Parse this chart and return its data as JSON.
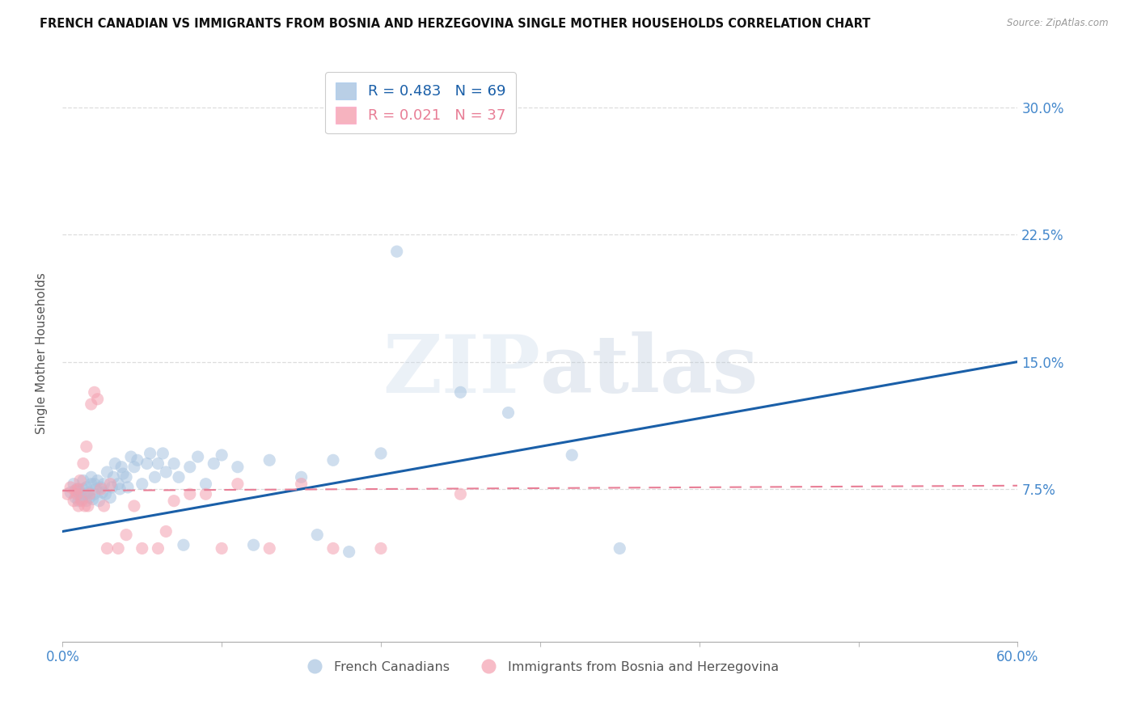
{
  "title": "FRENCH CANADIAN VS IMMIGRANTS FROM BOSNIA AND HERZEGOVINA SINGLE MOTHER HOUSEHOLDS CORRELATION CHART",
  "source": "Source: ZipAtlas.com",
  "ylabel": "Single Mother Households",
  "xlim": [
    0.0,
    0.6
  ],
  "ylim": [
    -0.015,
    0.325
  ],
  "yticks": [
    0.075,
    0.15,
    0.225,
    0.3
  ],
  "ytick_labels": [
    "7.5%",
    "15.0%",
    "22.5%",
    "30.0%"
  ],
  "xticks": [
    0.0,
    0.1,
    0.2,
    0.3,
    0.4,
    0.5,
    0.6
  ],
  "xtick_labels_shown": [
    "0.0%",
    "",
    "",
    "",
    "",
    "",
    "60.0%"
  ],
  "blue_scatter_x": [
    0.005,
    0.007,
    0.008,
    0.009,
    0.01,
    0.01,
    0.011,
    0.012,
    0.013,
    0.013,
    0.014,
    0.015,
    0.015,
    0.016,
    0.017,
    0.018,
    0.018,
    0.019,
    0.02,
    0.02,
    0.021,
    0.022,
    0.023,
    0.024,
    0.025,
    0.026,
    0.027,
    0.028,
    0.03,
    0.031,
    0.032,
    0.033,
    0.035,
    0.036,
    0.037,
    0.038,
    0.04,
    0.041,
    0.043,
    0.045,
    0.047,
    0.05,
    0.053,
    0.055,
    0.058,
    0.06,
    0.063,
    0.065,
    0.07,
    0.073,
    0.076,
    0.08,
    0.085,
    0.09,
    0.095,
    0.1,
    0.11,
    0.12,
    0.13,
    0.15,
    0.16,
    0.17,
    0.18,
    0.2,
    0.21,
    0.25,
    0.28,
    0.32,
    0.35
  ],
  "blue_scatter_y": [
    0.073,
    0.078,
    0.07,
    0.075,
    0.068,
    0.074,
    0.072,
    0.069,
    0.075,
    0.08,
    0.072,
    0.068,
    0.076,
    0.073,
    0.07,
    0.078,
    0.082,
    0.069,
    0.072,
    0.078,
    0.075,
    0.08,
    0.068,
    0.076,
    0.073,
    0.078,
    0.072,
    0.085,
    0.07,
    0.076,
    0.082,
    0.09,
    0.078,
    0.075,
    0.088,
    0.084,
    0.082,
    0.076,
    0.094,
    0.088,
    0.092,
    0.078,
    0.09,
    0.096,
    0.082,
    0.09,
    0.096,
    0.085,
    0.09,
    0.082,
    0.042,
    0.088,
    0.094,
    0.078,
    0.09,
    0.095,
    0.088,
    0.042,
    0.092,
    0.082,
    0.048,
    0.092,
    0.038,
    0.096,
    0.215,
    0.132,
    0.12,
    0.095,
    0.04
  ],
  "pink_scatter_x": [
    0.003,
    0.005,
    0.007,
    0.008,
    0.009,
    0.01,
    0.01,
    0.011,
    0.012,
    0.013,
    0.014,
    0.015,
    0.016,
    0.017,
    0.018,
    0.02,
    0.022,
    0.024,
    0.026,
    0.028,
    0.03,
    0.035,
    0.04,
    0.045,
    0.05,
    0.06,
    0.065,
    0.07,
    0.08,
    0.09,
    0.1,
    0.11,
    0.13,
    0.15,
    0.17,
    0.2,
    0.25
  ],
  "pink_scatter_y": [
    0.072,
    0.076,
    0.068,
    0.074,
    0.072,
    0.065,
    0.075,
    0.08,
    0.068,
    0.09,
    0.065,
    0.1,
    0.065,
    0.072,
    0.125,
    0.132,
    0.128,
    0.075,
    0.065,
    0.04,
    0.078,
    0.04,
    0.048,
    0.065,
    0.04,
    0.04,
    0.05,
    0.068,
    0.072,
    0.072,
    0.04,
    0.078,
    0.04,
    0.078,
    0.04,
    0.04,
    0.072
  ],
  "blue_line_x": [
    0.0,
    0.6
  ],
  "blue_line_y": [
    0.05,
    0.15
  ],
  "pink_line_x": [
    0.0,
    0.6
  ],
  "pink_line_y": [
    0.074,
    0.077
  ],
  "blue_scatter_color": "#A8C4E0",
  "pink_scatter_color": "#F4A0B0",
  "blue_line_color": "#1A5FA8",
  "pink_line_color": "#E87E96",
  "legend_label_blue": "French Canadians",
  "legend_label_pink": "Immigrants from Bosnia and Herzegovina",
  "legend_R_blue": "R = 0.483",
  "legend_N_blue": "N = 69",
  "legend_R_pink": "R = 0.021",
  "legend_N_pink": "N = 37",
  "watermark_zip": "ZIP",
  "watermark_atlas": "atlas",
  "scatter_size": 120,
  "grid_color": "#DDDDDD",
  "background_color": "#FFFFFF",
  "title_fontsize": 10.5,
  "tick_label_color_blue": "#4488CC",
  "axis_label_color": "#555555"
}
